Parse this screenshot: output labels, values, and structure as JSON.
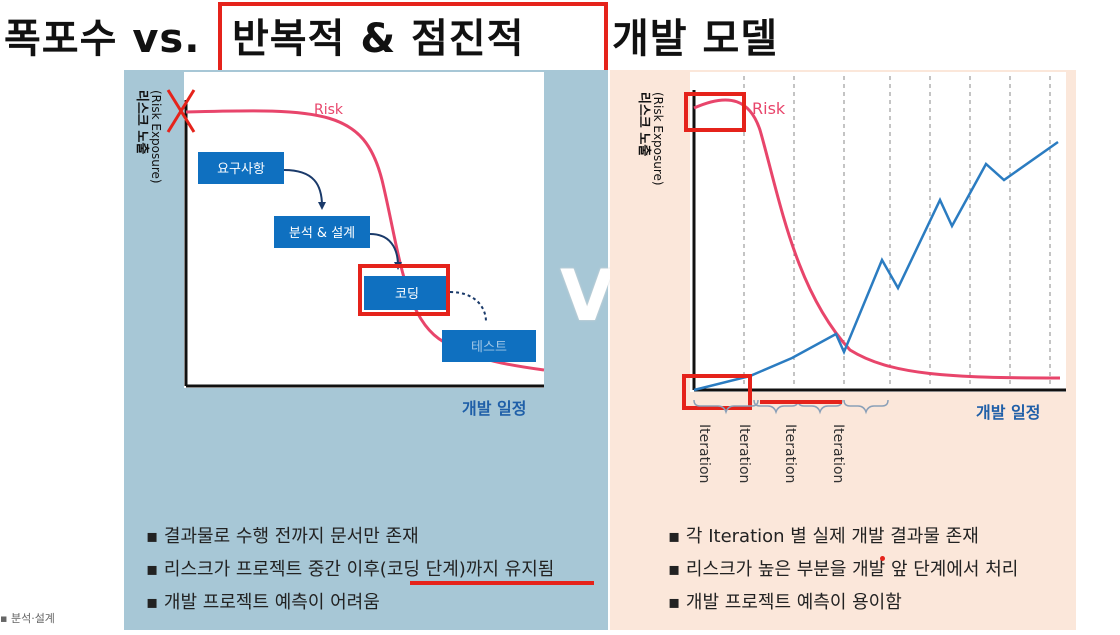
{
  "title": {
    "part1": "폭포수 vs.",
    "part2": "반복적 & 점진적",
    "part3": "개발 모델"
  },
  "left": {
    "y_axis_label": "리스크 노출",
    "y_axis_sub": "(Risk Exposure)",
    "curve_label": "Risk",
    "x_axis_label": "개발 일정",
    "stages": [
      "요구사항",
      "분석 & 설계",
      "코딩",
      "테스트"
    ],
    "bullets": [
      "결과물로 수행 전까지 문서만 존재",
      "리스크가 프로젝트 중간 이후(코딩 단계)까지 유지됨",
      "개발 프로젝트 예측이 어려움"
    ]
  },
  "right": {
    "y_axis_label": "리스크 노출",
    "y_axis_sub": "(Risk Exposure)",
    "curve_label": "Risk",
    "x_axis_label": "개발 일정",
    "iterations": [
      "Iteration",
      "Iteration",
      "Iteration",
      "Iteration"
    ],
    "bullets": [
      "각 Iteration 별 실제 개발 결과물 존재",
      "리스크가 높은 부분을 개발 앞 단계에서 처리",
      "개발 프로젝트 예측이 용이함"
    ]
  },
  "vs_text": "VS",
  "footer": "▪ 분석·설계",
  "colors": {
    "risk": "#e8456b",
    "progress": "#2b7cc1",
    "stage_box": "#0f70c0",
    "highlight": "#e5231b"
  }
}
